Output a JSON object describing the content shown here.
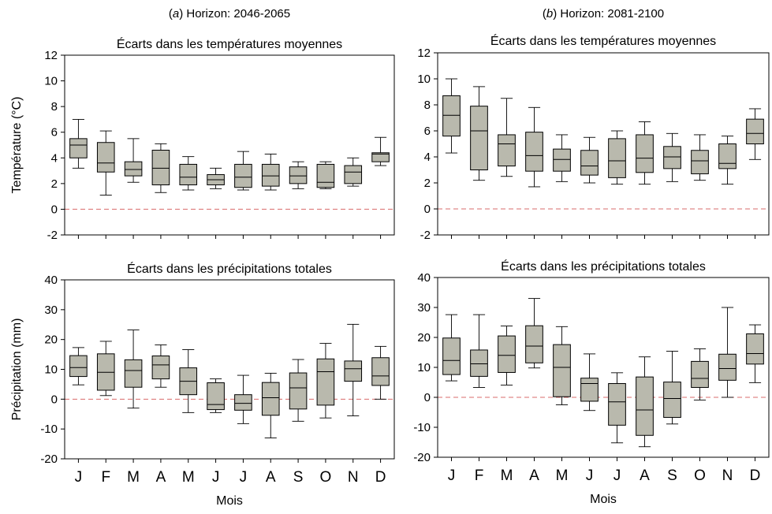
{
  "figure": {
    "panel_a_title": "(a) Horizon: 2046-2065",
    "panel_b_title": "(b) Horizon: 2081-2100",
    "xlabel": "Mois",
    "box_color": "#b9b9ad",
    "reference_line_color": "#d96b6b"
  },
  "chart_data": [
    {
      "id": "a-temp",
      "type": "boxplot",
      "title": "Écarts dans les températures moyennes",
      "ylabel": "Température (°C)",
      "xlabel": "",
      "ylim": [
        -2,
        12
      ],
      "yticks": [
        -2,
        0,
        2,
        4,
        6,
        8,
        10,
        12
      ],
      "reference_line": 0,
      "categories": [
        "J",
        "F",
        "M",
        "A",
        "M",
        "J",
        "J",
        "A",
        "S",
        "O",
        "N",
        "D"
      ],
      "boxes": [
        {
          "min": 3.2,
          "q1": 4.0,
          "median": 5.0,
          "q3": 5.5,
          "max": 7.0
        },
        {
          "min": 1.1,
          "q1": 2.9,
          "median": 3.6,
          "q3": 5.2,
          "max": 6.1
        },
        {
          "min": 2.1,
          "q1": 2.6,
          "median": 3.1,
          "q3": 3.7,
          "max": 5.5
        },
        {
          "min": 1.3,
          "q1": 1.9,
          "median": 3.2,
          "q3": 4.6,
          "max": 5.1
        },
        {
          "min": 1.5,
          "q1": 1.9,
          "median": 2.5,
          "q3": 3.5,
          "max": 4.1
        },
        {
          "min": 1.6,
          "q1": 1.9,
          "median": 2.3,
          "q3": 2.7,
          "max": 3.2
        },
        {
          "min": 1.5,
          "q1": 1.7,
          "median": 2.5,
          "q3": 3.5,
          "max": 4.5
        },
        {
          "min": 1.5,
          "q1": 1.8,
          "median": 2.6,
          "q3": 3.5,
          "max": 4.3
        },
        {
          "min": 1.6,
          "q1": 2.0,
          "median": 2.6,
          "q3": 3.3,
          "max": 3.7
        },
        {
          "min": 1.6,
          "q1": 1.7,
          "median": 2.1,
          "q3": 3.5,
          "max": 3.7
        },
        {
          "min": 1.8,
          "q1": 2.0,
          "median": 2.9,
          "q3": 3.4,
          "max": 4.0
        },
        {
          "min": 3.4,
          "q1": 3.7,
          "median": 4.3,
          "q3": 4.4,
          "max": 5.6
        }
      ]
    },
    {
      "id": "b-temp",
      "type": "boxplot",
      "title": "Écarts dans les températures moyennes",
      "ylabel": "",
      "xlabel": "",
      "ylim": [
        -2,
        12
      ],
      "yticks": [
        -2,
        0,
        2,
        4,
        6,
        8,
        10,
        12
      ],
      "reference_line": 0,
      "categories": [
        "J",
        "F",
        "M",
        "A",
        "M",
        "J",
        "J",
        "A",
        "S",
        "O",
        "N",
        "D"
      ],
      "boxes": [
        {
          "min": 4.3,
          "q1": 5.6,
          "median": 7.2,
          "q3": 8.7,
          "max": 10.0
        },
        {
          "min": 2.2,
          "q1": 3.0,
          "median": 6.0,
          "q3": 7.9,
          "max": 9.4
        },
        {
          "min": 2.5,
          "q1": 3.3,
          "median": 5.0,
          "q3": 5.7,
          "max": 8.5
        },
        {
          "min": 1.7,
          "q1": 2.9,
          "median": 4.1,
          "q3": 5.9,
          "max": 7.8
        },
        {
          "min": 2.1,
          "q1": 2.9,
          "median": 3.8,
          "q3": 4.6,
          "max": 5.7
        },
        {
          "min": 2.0,
          "q1": 2.6,
          "median": 3.3,
          "q3": 4.5,
          "max": 5.5
        },
        {
          "min": 1.9,
          "q1": 2.4,
          "median": 3.7,
          "q3": 5.4,
          "max": 6.0
        },
        {
          "min": 1.9,
          "q1": 2.8,
          "median": 3.9,
          "q3": 5.7,
          "max": 6.7
        },
        {
          "min": 2.1,
          "q1": 3.1,
          "median": 4.0,
          "q3": 4.8,
          "max": 5.8
        },
        {
          "min": 2.2,
          "q1": 2.7,
          "median": 3.7,
          "q3": 4.5,
          "max": 5.7
        },
        {
          "min": 1.9,
          "q1": 3.1,
          "median": 3.5,
          "q3": 5.0,
          "max": 5.6
        },
        {
          "min": 3.8,
          "q1": 5.0,
          "median": 5.8,
          "q3": 6.9,
          "max": 7.7
        }
      ]
    },
    {
      "id": "a-precip",
      "type": "boxplot",
      "title": "Écarts dans les précipitations totales",
      "ylabel": "Précipitation (mm)",
      "xlabel": "Mois",
      "ylim": [
        -20,
        40
      ],
      "yticks": [
        -20,
        -10,
        0,
        10,
        20,
        30,
        40
      ],
      "reference_line": 0,
      "categories": [
        "J",
        "F",
        "M",
        "A",
        "M",
        "J",
        "J",
        "A",
        "S",
        "O",
        "N",
        "D"
      ],
      "boxes": [
        {
          "min": 4.8,
          "q1": 7.6,
          "median": 10.6,
          "q3": 14.6,
          "max": 17.3
        },
        {
          "min": 1.2,
          "q1": 3.0,
          "median": 9.0,
          "q3": 15.2,
          "max": 19.4
        },
        {
          "min": -3.0,
          "q1": 4.0,
          "median": 9.6,
          "q3": 13.2,
          "max": 23.2
        },
        {
          "min": 4.0,
          "q1": 6.8,
          "median": 11.5,
          "q3": 14.5,
          "max": 18.2
        },
        {
          "min": -4.5,
          "q1": 1.5,
          "median": 6.0,
          "q3": 10.5,
          "max": 16.6
        },
        {
          "min": -4.5,
          "q1": -3.5,
          "median": -1.8,
          "q3": 5.5,
          "max": 6.8
        },
        {
          "min": -8.2,
          "q1": -3.7,
          "median": -1.4,
          "q3": 1.5,
          "max": 8.0
        },
        {
          "min": -13.0,
          "q1": -5.4,
          "median": 0.5,
          "q3": 5.6,
          "max": 8.7
        },
        {
          "min": -7.4,
          "q1": -3.3,
          "median": 3.8,
          "q3": 8.8,
          "max": 13.3
        },
        {
          "min": -6.3,
          "q1": -2.0,
          "median": 9.2,
          "q3": 13.5,
          "max": 18.7
        },
        {
          "min": -5.6,
          "q1": 6.0,
          "median": 10.2,
          "q3": 12.8,
          "max": 25.1
        },
        {
          "min": 0.0,
          "q1": 4.6,
          "median": 7.8,
          "q3": 13.9,
          "max": 17.7
        }
      ]
    },
    {
      "id": "b-precip",
      "type": "boxplot",
      "title": "Écarts dans les précipitations totales",
      "ylabel": "",
      "xlabel": "Mois",
      "ylim": [
        -20,
        40
      ],
      "yticks": [
        -20,
        -10,
        0,
        10,
        20,
        30,
        40
      ],
      "reference_line": 0,
      "categories": [
        "J",
        "F",
        "M",
        "A",
        "M",
        "J",
        "J",
        "A",
        "S",
        "O",
        "N",
        "D"
      ],
      "boxes": [
        {
          "min": 5.5,
          "q1": 7.6,
          "median": 12.3,
          "q3": 19.8,
          "max": 27.6
        },
        {
          "min": 3.3,
          "q1": 7.0,
          "median": 11.2,
          "q3": 15.8,
          "max": 27.6
        },
        {
          "min": 4.1,
          "q1": 8.3,
          "median": 14.0,
          "q3": 20.5,
          "max": 23.8
        },
        {
          "min": 9.8,
          "q1": 11.5,
          "median": 17.1,
          "q3": 23.9,
          "max": 33.0
        },
        {
          "min": -2.5,
          "q1": 0.2,
          "median": 10.0,
          "q3": 17.6,
          "max": 23.6
        },
        {
          "min": -4.4,
          "q1": -1.3,
          "median": 4.6,
          "q3": 6.4,
          "max": 14.5
        },
        {
          "min": -15.2,
          "q1": -9.3,
          "median": -1.5,
          "q3": 4.6,
          "max": 8.2
        },
        {
          "min": -16.5,
          "q1": -12.7,
          "median": -4.2,
          "q3": 6.8,
          "max": 13.5
        },
        {
          "min": -8.9,
          "q1": -6.7,
          "median": -0.4,
          "q3": 5.1,
          "max": 15.4
        },
        {
          "min": -0.9,
          "q1": 3.3,
          "median": 6.3,
          "q3": 12.0,
          "max": 16.2
        },
        {
          "min": 0.0,
          "q1": 5.7,
          "median": 9.6,
          "q3": 14.4,
          "max": 30.0
        },
        {
          "min": 4.9,
          "q1": 11.1,
          "median": 14.6,
          "q3": 21.2,
          "max": 24.2
        }
      ]
    }
  ]
}
